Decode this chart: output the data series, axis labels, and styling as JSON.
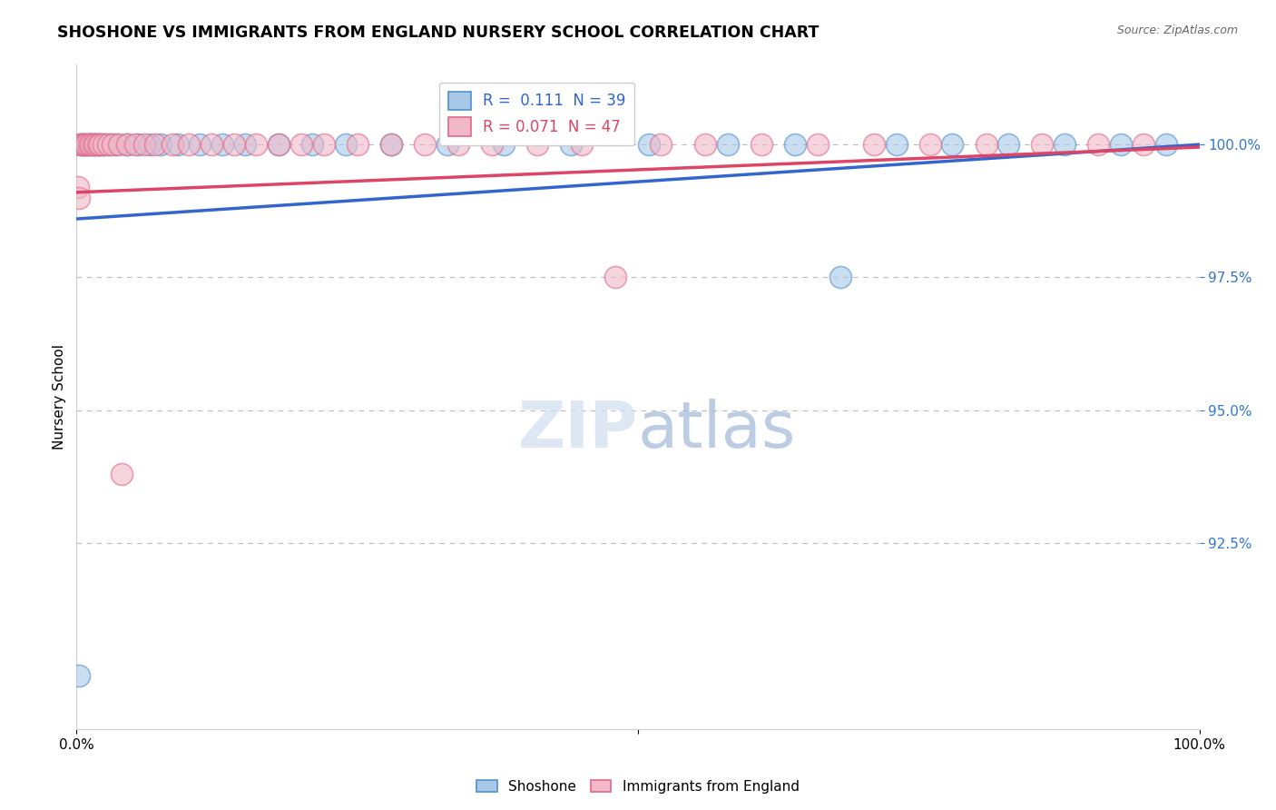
{
  "title": "SHOSHONE VS IMMIGRANTS FROM ENGLAND NURSERY SCHOOL CORRELATION CHART",
  "source": "Source: ZipAtlas.com",
  "ylabel": "Nursery School",
  "legend_label_blue": "Shoshone",
  "legend_label_pink": "Immigrants from England",
  "xlim": [
    0.0,
    100.0
  ],
  "ylim": [
    89.0,
    101.5
  ],
  "blue_R": 0.111,
  "blue_N": 39,
  "pink_R": 0.071,
  "pink_N": 47,
  "blue_color": "#a8c8e8",
  "pink_color": "#f0b8c8",
  "blue_edge_color": "#5090d0",
  "pink_edge_color": "#e06888",
  "blue_line_color": "#3366cc",
  "pink_line_color": "#dd4466",
  "y_tick_vals": [
    92.5,
    95.0,
    97.5,
    100.0
  ],
  "y_tick_labels": [
    "92.5%",
    "95.0%",
    "97.5%",
    "100.0%"
  ],
  "blue_x": [
    0.4,
    0.6,
    0.8,
    1.0,
    1.2,
    1.4,
    1.6,
    1.8,
    2.0,
    2.2,
    2.5,
    3.0,
    3.5,
    4.5,
    5.5,
    6.5,
    7.5,
    9.0,
    11.0,
    13.0,
    15.0,
    18.0,
    21.0,
    24.0,
    28.0,
    33.0,
    38.0,
    44.0,
    51.0,
    58.0,
    64.0,
    68.0,
    73.0,
    78.0,
    83.0,
    88.0,
    93.0,
    97.0,
    0.2
  ],
  "blue_y": [
    100.0,
    100.0,
    100.0,
    100.0,
    100.0,
    100.0,
    100.0,
    100.0,
    100.0,
    100.0,
    100.0,
    100.0,
    100.0,
    100.0,
    100.0,
    100.0,
    100.0,
    100.0,
    100.0,
    100.0,
    100.0,
    100.0,
    100.0,
    100.0,
    100.0,
    100.0,
    100.0,
    100.0,
    100.0,
    100.0,
    100.0,
    97.5,
    100.0,
    100.0,
    100.0,
    100.0,
    100.0,
    100.0,
    90.0
  ],
  "pink_x": [
    0.3,
    0.5,
    0.7,
    0.9,
    1.1,
    1.3,
    1.5,
    1.7,
    1.9,
    2.1,
    2.4,
    2.8,
    3.2,
    3.8,
    4.5,
    5.2,
    6.0,
    7.0,
    8.5,
    10.0,
    12.0,
    14.0,
    16.0,
    18.0,
    20.0,
    22.0,
    25.0,
    28.0,
    31.0,
    34.0,
    37.0,
    41.0,
    45.0,
    48.0,
    52.0,
    56.0,
    61.0,
    66.0,
    71.0,
    76.0,
    81.0,
    86.0,
    91.0,
    95.0,
    4.0,
    0.1,
    0.2
  ],
  "pink_y": [
    100.0,
    100.0,
    100.0,
    100.0,
    100.0,
    100.0,
    100.0,
    100.0,
    100.0,
    100.0,
    100.0,
    100.0,
    100.0,
    100.0,
    100.0,
    100.0,
    100.0,
    100.0,
    100.0,
    100.0,
    100.0,
    100.0,
    100.0,
    100.0,
    100.0,
    100.0,
    100.0,
    100.0,
    100.0,
    100.0,
    100.0,
    100.0,
    100.0,
    97.5,
    100.0,
    100.0,
    100.0,
    100.0,
    100.0,
    100.0,
    100.0,
    100.0,
    100.0,
    100.0,
    93.8,
    99.2,
    99.0
  ],
  "blue_trend_start_y": 98.6,
  "blue_trend_end_y": 100.0,
  "pink_trend_start_y": 99.1,
  "pink_trend_end_y": 99.95
}
